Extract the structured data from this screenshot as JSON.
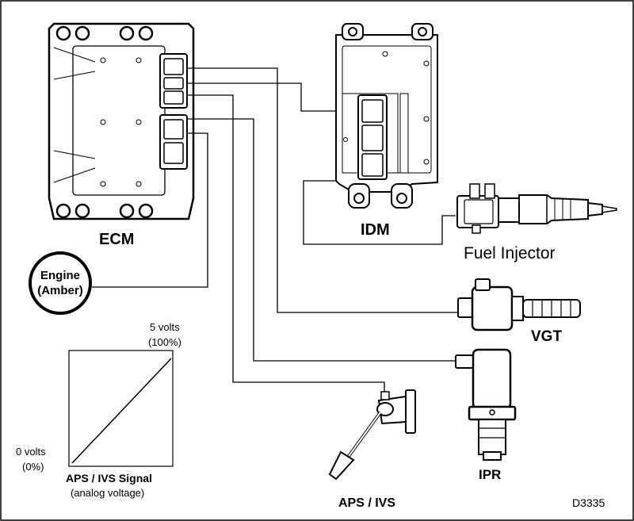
{
  "components": {
    "ecm": "ECM",
    "idm": "IDM",
    "fuel_injector": "Fuel Injector",
    "vgt": "VGT",
    "ipr": "IPR",
    "aps_ivs": "APS / IVS"
  },
  "engine_lamp": {
    "line1": "Engine",
    "line2": "(Amber)"
  },
  "signal_graph": {
    "top_label_1": "5 volts",
    "top_label_2": "(100%)",
    "bottom_label_1": "0 volts",
    "bottom_label_2": "(0%)",
    "title": "APS / IVS Signal",
    "subtitle": "(analog voltage)"
  },
  "figure_code": "D3335",
  "colors": {
    "line": "#000000",
    "fill": "#ffffff"
  }
}
